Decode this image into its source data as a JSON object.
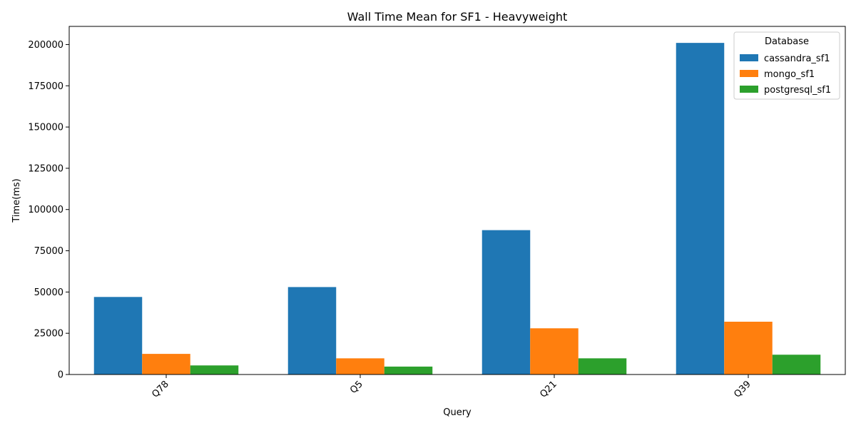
{
  "chart_data": {
    "type": "bar",
    "title": "Wall Time Mean for SF1 - Heavyweight",
    "xlabel": "Query",
    "ylabel": "Time(ms)",
    "categories": [
      "Q78",
      "Q5",
      "Q21",
      "Q39"
    ],
    "ylim": [
      0,
      211000
    ],
    "yticks": [
      0,
      25000,
      50000,
      75000,
      100000,
      125000,
      150000,
      175000,
      200000
    ],
    "grid": false,
    "legend": {
      "title": "Database",
      "position": "top-right"
    },
    "series": [
      {
        "name": "cassandra_sf1",
        "color": "#1f77b4",
        "values": [
          47000,
          53000,
          87500,
          201000
        ]
      },
      {
        "name": "mongo_sf1",
        "color": "#ff7f0e",
        "values": [
          12500,
          9800,
          28000,
          32000
        ]
      },
      {
        "name": "postgresql_sf1",
        "color": "#2ca02c",
        "values": [
          5500,
          4800,
          9800,
          12000
        ]
      }
    ]
  }
}
